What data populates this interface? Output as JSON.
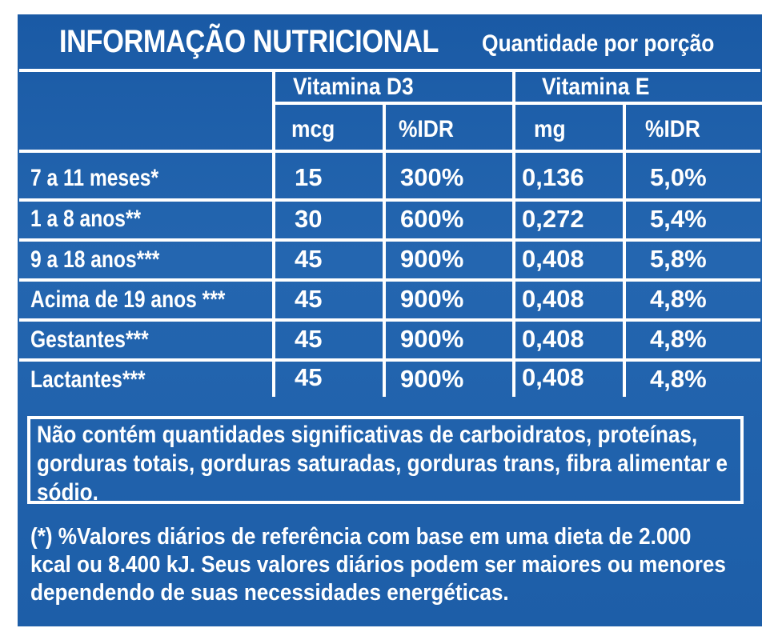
{
  "header": {
    "title": "INFORMAÇÃO NUTRICIONAL",
    "subtitle": "Quantidade por porção"
  },
  "columns": {
    "groups": [
      "Vitamina D3",
      "Vitamina E"
    ],
    "units": [
      "mcg",
      "%IDR",
      "mg",
      "%IDR"
    ]
  },
  "rows": [
    {
      "label": "7 a 11 meses*",
      "d3_mcg": "15",
      "d3_idr": "300%",
      "e_mg": "0,136",
      "e_idr": "5,0%"
    },
    {
      "label": "1 a 8 anos**",
      "d3_mcg": "30",
      "d3_idr": "600%",
      "e_mg": "0,272",
      "e_idr": "5,4%"
    },
    {
      "label": "9 a 18 anos***",
      "d3_mcg": "45",
      "d3_idr": "900%",
      "e_mg": "0,408",
      "e_idr": "5,8%"
    },
    {
      "label": "Acima de 19 anos ***",
      "d3_mcg": "45",
      "d3_idr": "900%",
      "e_mg": "0,408",
      "e_idr": "4,8%"
    },
    {
      "label": "Gestantes***",
      "d3_mcg": "45",
      "d3_idr": "900%",
      "e_mg": "0,408",
      "e_idr": "4,8%"
    },
    {
      "label": "Lactantes***",
      "d3_mcg": "45",
      "d3_idr": "900%",
      "e_mg": "0,408",
      "e_idr": "4,8%"
    }
  ],
  "note": {
    "line1": "Não contém quantidades significativas de carboidratos, proteínas,",
    "line2": "gorduras totais, gorduras saturadas, gorduras trans, fibra alimentar e",
    "line3": "sódio."
  },
  "footnote": {
    "line1": "(*) %Valores diários de referência com base em uma dieta de 2.000",
    "line2": "kcal ou 8.400 kJ. Seus valores diários podem ser maiores ou menores",
    "line3": "dependendo de suas necessidades energéticas."
  },
  "colors": {
    "background": "#1d5ea8",
    "text": "#ffffff"
  }
}
